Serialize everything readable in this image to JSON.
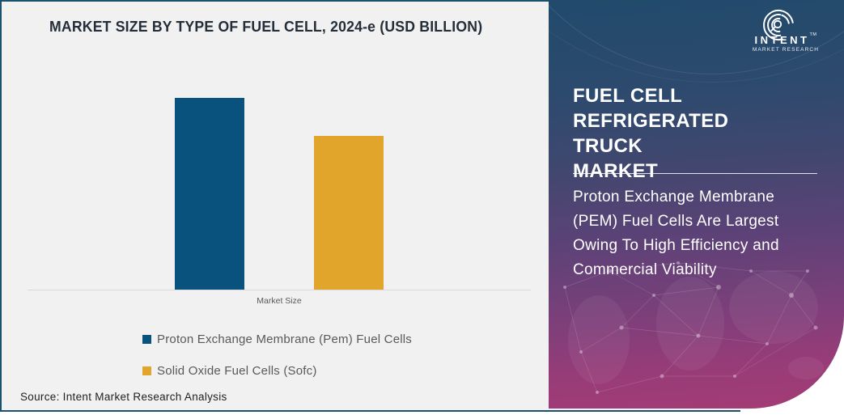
{
  "colors": {
    "card_bg": "#f1f1f2",
    "card_border": "#1d4f6e",
    "title_text": "#242e39",
    "bar_pem": "#0a527e",
    "bar_sofc": "#e2a52b",
    "axis_line": "#d9d9d9",
    "muted_text": "#595959",
    "panel_gradient_top": "#214a6b",
    "panel_gradient_bottom": "#a43b76",
    "panel_text": "#ffffff"
  },
  "chart": {
    "title": "MARKET SIZE BY TYPE OF FUEL CELL, 2024-e (USD BILLION)",
    "x_axis_label": "Market Size",
    "legend": [
      {
        "label": "Proton Exchange Membrane (Pem) Fuel Cells",
        "color": "#0a527e"
      },
      {
        "label": "Solid Oxide Fuel Cells (Sofc)",
        "color": "#e2a52b"
      }
    ],
    "source": "Source: Intent Market Research Analysis"
  },
  "chart_data": {
    "type": "bar",
    "title": "MARKET SIZE BY TYPE OF FUEL CELL, 2024-e (USD BILLION)",
    "categories": [
      "Market Size"
    ],
    "series": [
      {
        "name": "Proton Exchange Membrane (Pem) Fuel Cells",
        "color": "#0a527e",
        "relative_heights": [
          1.0
        ]
      },
      {
        "name": "Solid Oxide Fuel Cells (Sofc)",
        "color": "#e2a52b",
        "relative_heights": [
          0.8
        ]
      }
    ],
    "value_labels_shown": false,
    "y_axis_shown": false,
    "grid": false,
    "legend_position": "bottom-left",
    "unit_note": "USD Billion (bar values not labeled in figure)"
  },
  "panel": {
    "logo": {
      "brand": "INTENT",
      "tm": "TM",
      "sub": "MARKET RESEARCH"
    },
    "heading_lines": [
      "FUEL CELL",
      "REFRIGERATED TRUCK",
      "MARKET"
    ],
    "body_lines": [
      "Proton Exchange Membrane",
      "(PEM) Fuel Cells Are Largest",
      "Owing To High Efficiency and",
      "Commercial Viability"
    ]
  }
}
